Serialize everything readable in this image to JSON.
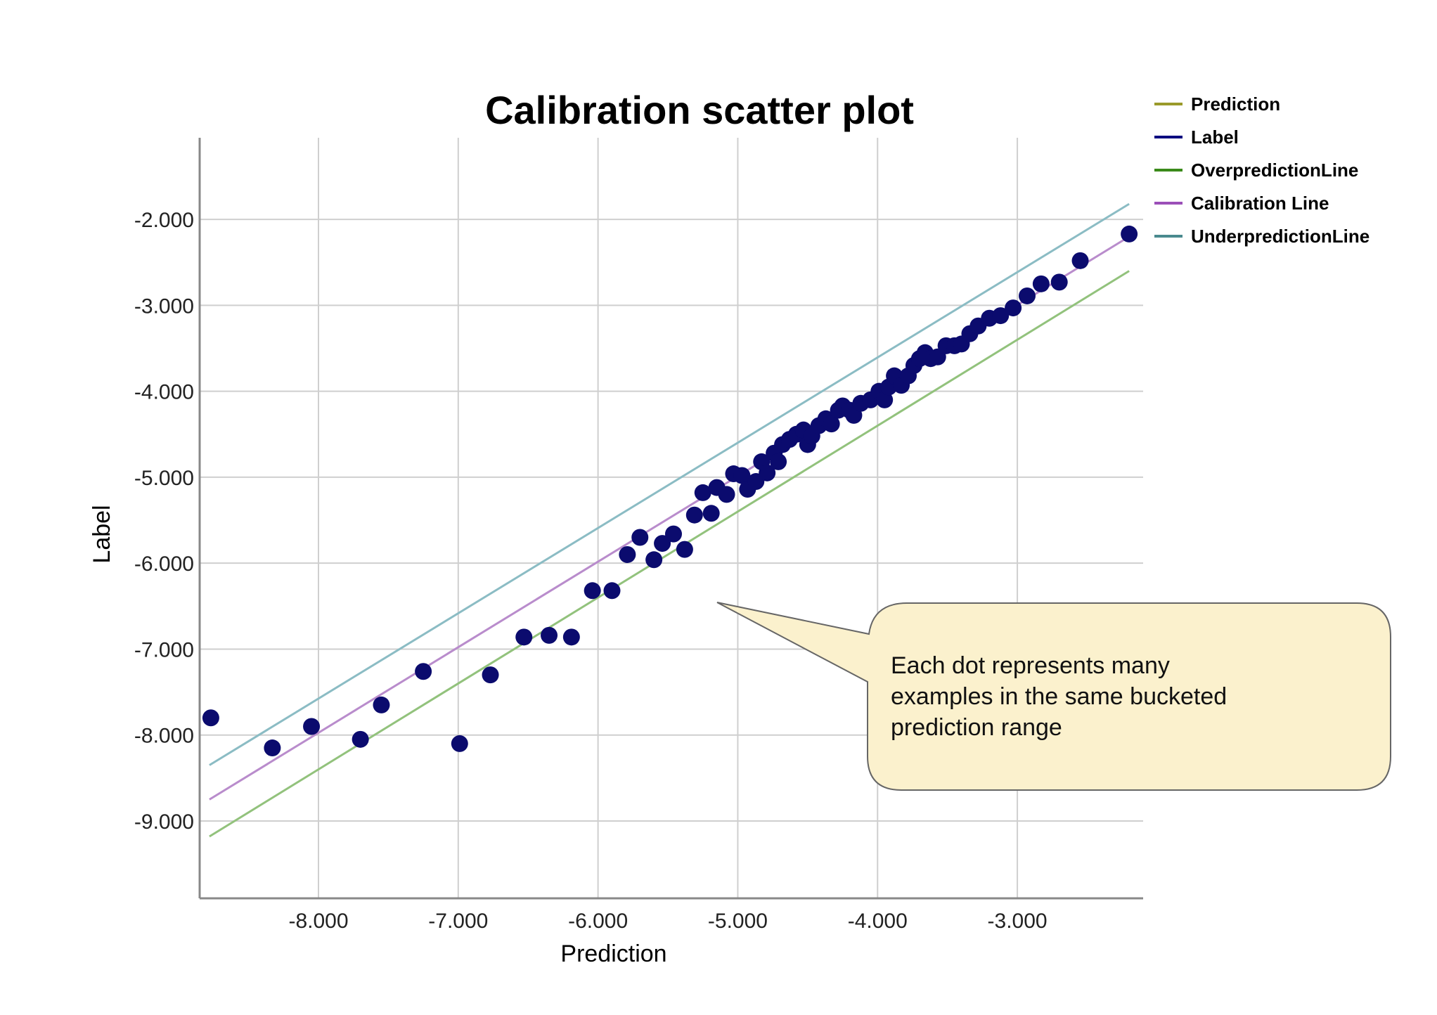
{
  "chart_data": {
    "type": "scatter",
    "title": "Calibration scatter plot",
    "xlabel": "Prediction",
    "ylabel": "Label",
    "xlim": [
      -8.85,
      -2.1
    ],
    "ylim": [
      -9.9,
      -1.05
    ],
    "xticks": [
      -8,
      -7,
      -6,
      -5,
      -4,
      -3
    ],
    "yticks": [
      -2,
      -3,
      -4,
      -5,
      -6,
      -7,
      -8,
      -9
    ],
    "xtick_labels": [
      "-8.000",
      "-7.000",
      "-6.000",
      "-5.000",
      "-4.000",
      "-3.000"
    ],
    "ytick_labels": [
      "-2.000",
      "-3.000",
      "-4.000",
      "-5.000",
      "-6.000",
      "-7.000",
      "-8.000",
      "-9.000"
    ],
    "grid": true,
    "legend_position": "top-right",
    "legend": [
      {
        "label": "Prediction",
        "color": "#9a9a2a"
      },
      {
        "label": "Label",
        "color": "#0a0a80"
      },
      {
        "label": "OverpredictionLine",
        "color": "#3a8a1a"
      },
      {
        "label": "Calibration Line",
        "color": "#9b4fb8"
      },
      {
        "label": "UnderpredictionLine",
        "color": "#4a8a8e"
      }
    ],
    "lines": [
      {
        "name": "UnderpredictionLine",
        "color": "#8bbcc4",
        "x": [
          -8.78,
          -2.2
        ],
        "y": [
          -8.35,
          -1.82
        ]
      },
      {
        "name": "Calibration Line",
        "color": "#b98ccc",
        "x": [
          -8.78,
          -2.2
        ],
        "y": [
          -8.75,
          -2.2
        ]
      },
      {
        "name": "OverpredictionLine",
        "color": "#92c27c",
        "x": [
          -8.78,
          -2.2
        ],
        "y": [
          -9.18,
          -2.6
        ]
      }
    ],
    "points_color": "#0b0b6e",
    "points": [
      [
        -8.77,
        -7.8
      ],
      [
        -8.33,
        -8.15
      ],
      [
        -8.05,
        -7.9
      ],
      [
        -7.7,
        -8.05
      ],
      [
        -7.55,
        -7.65
      ],
      [
        -7.25,
        -7.26
      ],
      [
        -6.99,
        -8.1
      ],
      [
        -6.77,
        -7.3
      ],
      [
        -6.53,
        -6.86
      ],
      [
        -6.35,
        -6.84
      ],
      [
        -6.19,
        -6.86
      ],
      [
        -6.04,
        -6.32
      ],
      [
        -5.9,
        -6.32
      ],
      [
        -5.79,
        -5.9
      ],
      [
        -5.7,
        -5.7
      ],
      [
        -5.6,
        -5.96
      ],
      [
        -5.54,
        -5.77
      ],
      [
        -5.46,
        -5.66
      ],
      [
        -5.38,
        -5.84
      ],
      [
        -5.31,
        -5.44
      ],
      [
        -5.25,
        -5.18
      ],
      [
        -5.19,
        -5.42
      ],
      [
        -5.15,
        -5.12
      ],
      [
        -5.08,
        -5.2
      ],
      [
        -5.03,
        -4.96
      ],
      [
        -4.97,
        -4.98
      ],
      [
        -4.93,
        -5.14
      ],
      [
        -4.87,
        -5.05
      ],
      [
        -4.83,
        -4.82
      ],
      [
        -4.79,
        -4.95
      ],
      [
        -4.74,
        -4.72
      ],
      [
        -4.71,
        -4.82
      ],
      [
        -4.68,
        -4.62
      ],
      [
        -4.63,
        -4.56
      ],
      [
        -4.58,
        -4.5
      ],
      [
        -4.53,
        -4.45
      ],
      [
        -4.5,
        -4.62
      ],
      [
        -4.47,
        -4.52
      ],
      [
        -4.42,
        -4.4
      ],
      [
        -4.37,
        -4.32
      ],
      [
        -4.33,
        -4.38
      ],
      [
        -4.28,
        -4.22
      ],
      [
        -4.25,
        -4.17
      ],
      [
        -4.2,
        -4.22
      ],
      [
        -4.17,
        -4.28
      ],
      [
        -4.12,
        -4.14
      ],
      [
        -4.05,
        -4.1
      ],
      [
        -3.99,
        -4.0
      ],
      [
        -3.95,
        -4.1
      ],
      [
        -3.92,
        -3.95
      ],
      [
        -3.88,
        -3.82
      ],
      [
        -3.83,
        -3.93
      ],
      [
        -3.78,
        -3.82
      ],
      [
        -3.74,
        -3.7
      ],
      [
        -3.7,
        -3.62
      ],
      [
        -3.66,
        -3.55
      ],
      [
        -3.62,
        -3.62
      ],
      [
        -3.57,
        -3.6
      ],
      [
        -3.51,
        -3.47
      ],
      [
        -3.45,
        -3.47
      ],
      [
        -3.4,
        -3.45
      ],
      [
        -3.34,
        -3.33
      ],
      [
        -3.28,
        -3.24
      ],
      [
        -3.2,
        -3.15
      ],
      [
        -3.12,
        -3.12
      ],
      [
        -3.03,
        -3.03
      ],
      [
        -2.93,
        -2.89
      ],
      [
        -2.83,
        -2.75
      ],
      [
        -2.7,
        -2.73
      ],
      [
        -2.55,
        -2.48
      ],
      [
        -2.2,
        -2.17
      ]
    ],
    "annotation": "Each dot represents many examples in the same bucketed prediction range"
  }
}
